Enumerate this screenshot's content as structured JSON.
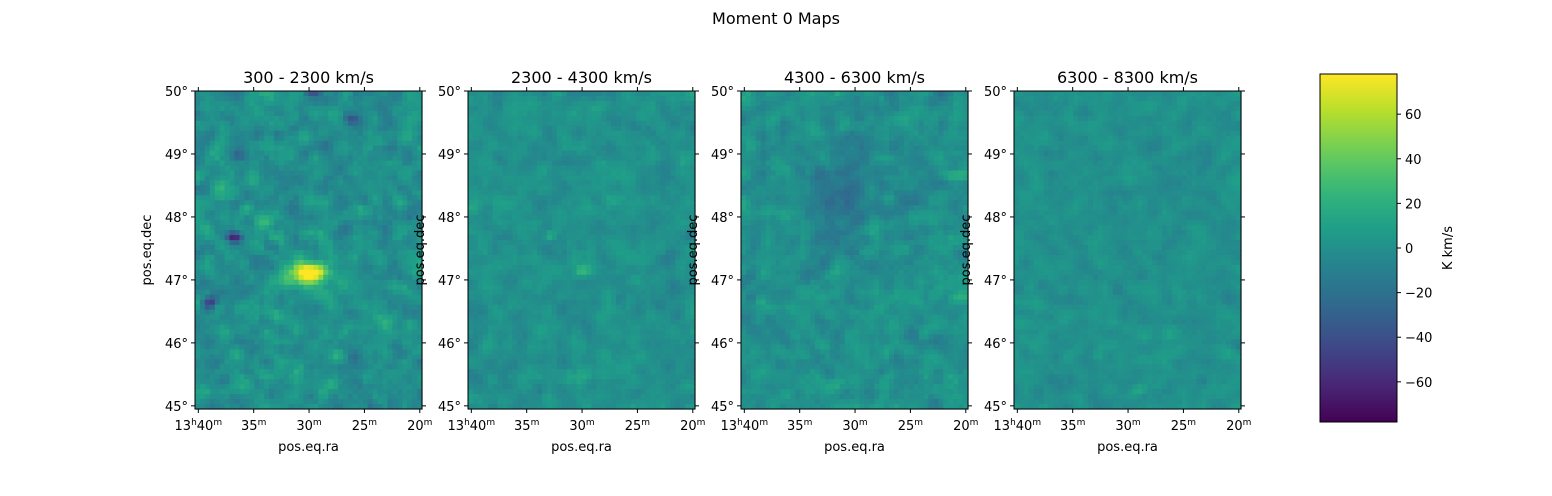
{
  "figure": {
    "suptitle": "Moment 0 Maps"
  },
  "chart_data": {
    "type": "heatmap",
    "panels": [
      {
        "title": "300 - 2300 km/s",
        "xlabel": "pos.eq.ra",
        "ylabel": "pos.eq.dec",
        "features": [
          {
            "ra_min": 29.8,
            "dec": 47.12,
            "value": 72,
            "sigma_ra_min": 0.9,
            "sigma_dec": 0.09
          },
          {
            "ra_min": 30.8,
            "dec": 47.05,
            "value": 40,
            "sigma_ra_min": 1.6,
            "sigma_dec": 0.16
          },
          {
            "ra_min": 36.8,
            "dec": 47.68,
            "value": -62,
            "sigma_ra_min": 0.5,
            "sigma_dec": 0.06
          },
          {
            "ra_min": 39.0,
            "dec": 46.65,
            "value": -45,
            "sigma_ra_min": 0.5,
            "sigma_dec": 0.07
          },
          {
            "ra_min": 26.0,
            "dec": 49.55,
            "value": -40,
            "sigma_ra_min": 0.5,
            "sigma_dec": 0.07
          },
          {
            "ra_min": 36.2,
            "dec": 48.95,
            "value": -30,
            "sigma_ra_min": 0.5,
            "sigma_dec": 0.07
          },
          {
            "ra_min": 29.8,
            "dec": 50.0,
            "value": -35,
            "sigma_ra_min": 0.5,
            "sigma_dec": 0.05
          },
          {
            "ra_min": 21.8,
            "dec": 45.85,
            "value": -25,
            "sigma_ra_min": 0.6,
            "sigma_dec": 0.08
          },
          {
            "ra_min": 34.0,
            "dec": 47.9,
            "value": 25,
            "sigma_ra_min": 0.5,
            "sigma_dec": 0.07
          }
        ],
        "noise_sigma": 11,
        "seed": 11
      },
      {
        "title": "2300 - 4300 km/s",
        "xlabel": "pos.eq.ra",
        "ylabel": "pos.eq.dec",
        "features": [
          {
            "ra_min": 30.0,
            "dec": 47.15,
            "value": 28,
            "sigma_ra_min": 0.5,
            "sigma_dec": 0.07
          },
          {
            "ra_min": 32.8,
            "dec": 47.7,
            "value": 22,
            "sigma_ra_min": 0.4,
            "sigma_dec": 0.05
          }
        ],
        "noise_sigma": 7,
        "seed": 23
      },
      {
        "title": "4300 - 6300 km/s",
        "xlabel": "pos.eq.ra",
        "ylabel": "pos.eq.dec",
        "features": [
          {
            "ra_min": 31.0,
            "dec": 48.2,
            "value": -18,
            "sigma_ra_min": 2.5,
            "sigma_dec": 0.5
          },
          {
            "ra_min": 20.8,
            "dec": 48.65,
            "value": 22,
            "sigma_ra_min": 1.0,
            "sigma_dec": 0.06
          },
          {
            "ra_min": 28.2,
            "dec": 47.85,
            "value": 18,
            "sigma_ra_min": 0.6,
            "sigma_dec": 0.15
          }
        ],
        "noise_sigma": 9,
        "seed": 37
      },
      {
        "title": "6300 - 8300 km/s",
        "xlabel": "pos.eq.ra",
        "ylabel": "pos.eq.dec",
        "features": [
          {
            "ra_min": 29.0,
            "dec": 45.25,
            "value": 15,
            "sigma_ra_min": 0.5,
            "sigma_dec": 0.05
          }
        ],
        "noise_sigma": 6,
        "seed": 51
      }
    ],
    "x_axis": {
      "ra_range_min": [
        40.3,
        19.8
      ],
      "ticks": [
        {
          "value": 40,
          "main": "13",
          "sup1": "h",
          "mid": "40",
          "sup2": "m"
        },
        {
          "value": 35,
          "main": "",
          "sup1": "",
          "mid": "35",
          "sup2": "m"
        },
        {
          "value": 30,
          "main": "",
          "sup1": "",
          "mid": "30",
          "sup2": "m"
        },
        {
          "value": 25,
          "main": "",
          "sup1": "",
          "mid": "25",
          "sup2": "m"
        },
        {
          "value": 20,
          "main": "",
          "sup1": "",
          "mid": "20",
          "sup2": "m"
        }
      ]
    },
    "y_axis": {
      "dec_range": [
        44.95,
        50.0
      ],
      "ticks": [
        {
          "value": 45,
          "label": "45°"
        },
        {
          "value": 46,
          "label": "46°"
        },
        {
          "value": 47,
          "label": "47°"
        },
        {
          "value": 48,
          "label": "48°"
        },
        {
          "value": 49,
          "label": "49°"
        },
        {
          "value": 50,
          "label": "50°"
        }
      ]
    },
    "colorbar": {
      "label": "K km/s",
      "range": [
        -78,
        78
      ],
      "ticks": [
        {
          "value": 60,
          "label": "60"
        },
        {
          "value": 40,
          "label": "40"
        },
        {
          "value": 20,
          "label": "20"
        },
        {
          "value": 0,
          "label": "0"
        },
        {
          "value": -20,
          "label": "−20"
        },
        {
          "value": -40,
          "label": "−40"
        },
        {
          "value": -60,
          "label": "−60"
        }
      ],
      "colormap": "viridis"
    },
    "grid": false
  }
}
